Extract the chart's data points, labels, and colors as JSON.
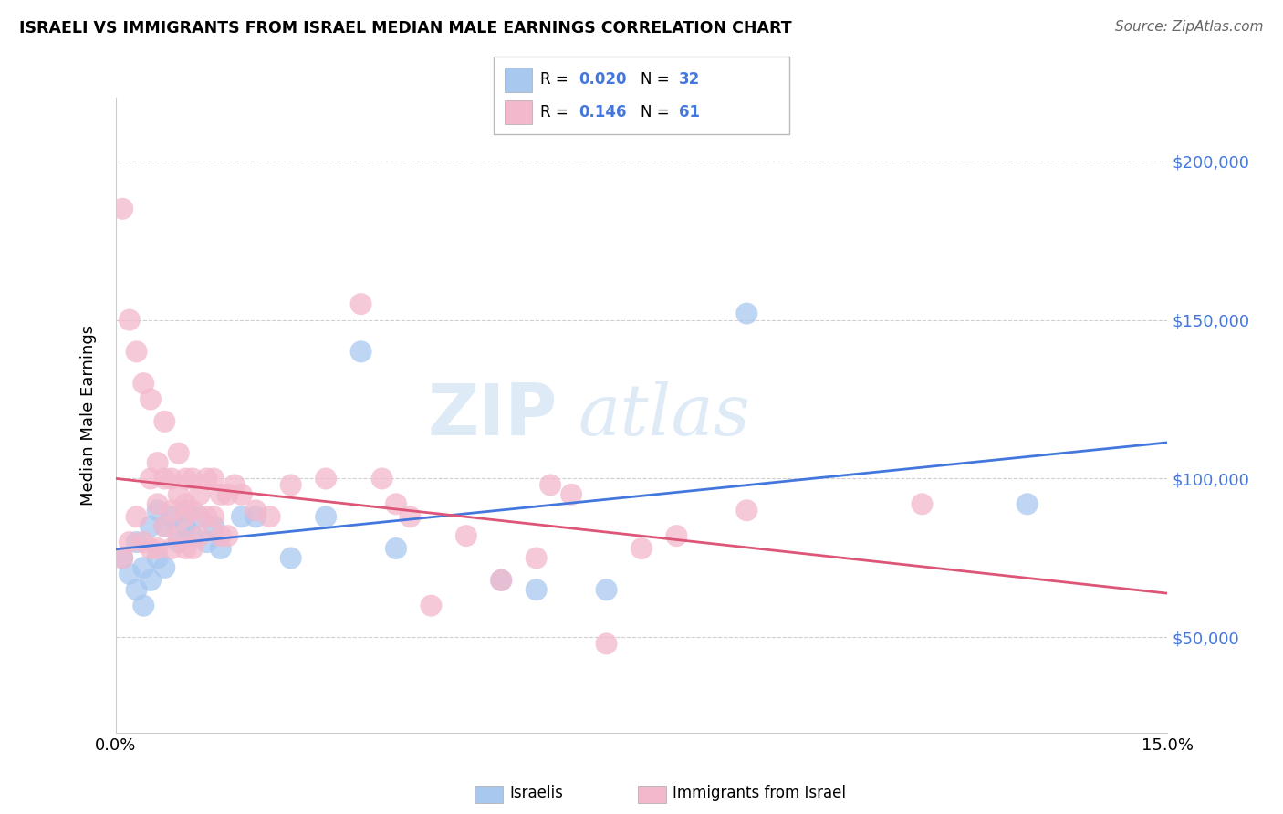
{
  "title": "ISRAELI VS IMMIGRANTS FROM ISRAEL MEDIAN MALE EARNINGS CORRELATION CHART",
  "source": "Source: ZipAtlas.com",
  "ylabel": "Median Male Earnings",
  "watermark_top": "ZIP",
  "watermark_bot": "atlas",
  "xlim": [
    0.0,
    0.15
  ],
  "ylim": [
    20000,
    220000
  ],
  "yticks": [
    50000,
    100000,
    150000,
    200000
  ],
  "ytick_labels": [
    "$50,000",
    "$100,000",
    "$150,000",
    "$200,000"
  ],
  "legend_R_blue": "0.020",
  "legend_N_blue": "32",
  "legend_R_pink": "0.146",
  "legend_N_pink": "61",
  "label_israelis": "Israelis",
  "label_immigrants": "Immigrants from Israel",
  "blue_color": "#a8c8f0",
  "pink_color": "#f4b8cc",
  "blue_line_color": "#4477dd",
  "pink_line_color": "#dd5577",
  "value_color": "#4477dd",
  "blue_scatter_x": [
    0.001,
    0.002,
    0.003,
    0.003,
    0.004,
    0.004,
    0.005,
    0.005,
    0.006,
    0.006,
    0.007,
    0.007,
    0.008,
    0.009,
    0.01,
    0.01,
    0.011,
    0.012,
    0.013,
    0.014,
    0.015,
    0.018,
    0.02,
    0.025,
    0.03,
    0.035,
    0.04,
    0.055,
    0.06,
    0.07,
    0.09,
    0.13
  ],
  "blue_scatter_y": [
    75000,
    70000,
    80000,
    65000,
    72000,
    60000,
    85000,
    68000,
    90000,
    75000,
    85000,
    72000,
    88000,
    80000,
    85000,
    90000,
    82000,
    88000,
    80000,
    85000,
    78000,
    88000,
    88000,
    75000,
    88000,
    140000,
    78000,
    68000,
    65000,
    65000,
    152000,
    92000
  ],
  "pink_scatter_x": [
    0.001,
    0.001,
    0.002,
    0.002,
    0.003,
    0.003,
    0.004,
    0.004,
    0.005,
    0.005,
    0.005,
    0.006,
    0.006,
    0.006,
    0.007,
    0.007,
    0.007,
    0.008,
    0.008,
    0.008,
    0.009,
    0.009,
    0.009,
    0.01,
    0.01,
    0.01,
    0.01,
    0.011,
    0.011,
    0.011,
    0.012,
    0.012,
    0.013,
    0.013,
    0.014,
    0.014,
    0.015,
    0.015,
    0.016,
    0.016,
    0.017,
    0.018,
    0.02,
    0.022,
    0.025,
    0.03,
    0.035,
    0.038,
    0.04,
    0.042,
    0.045,
    0.05,
    0.055,
    0.06,
    0.062,
    0.065,
    0.07,
    0.075,
    0.08,
    0.09,
    0.115
  ],
  "pink_scatter_y": [
    185000,
    75000,
    150000,
    80000,
    140000,
    88000,
    130000,
    80000,
    125000,
    100000,
    78000,
    105000,
    92000,
    78000,
    118000,
    100000,
    85000,
    100000,
    90000,
    78000,
    108000,
    95000,
    82000,
    100000,
    92000,
    88000,
    78000,
    100000,
    90000,
    78000,
    95000,
    82000,
    100000,
    88000,
    100000,
    88000,
    95000,
    82000,
    95000,
    82000,
    98000,
    95000,
    90000,
    88000,
    98000,
    100000,
    155000,
    100000,
    92000,
    88000,
    60000,
    82000,
    68000,
    75000,
    98000,
    95000,
    48000,
    78000,
    82000,
    90000,
    92000
  ]
}
